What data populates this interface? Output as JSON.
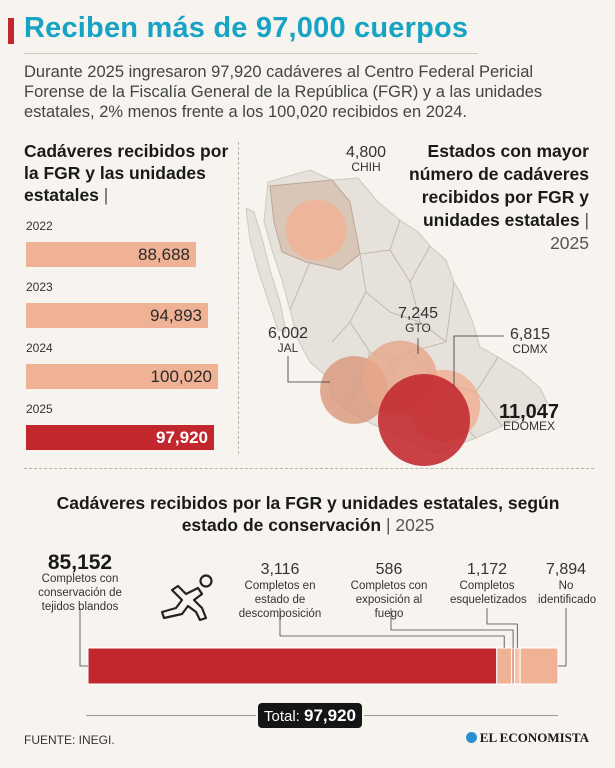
{
  "title": "Reciben más de 97,000 cuerpos",
  "intro": "Durante 2025 ingresaron 97,920 cadáveres al Centro Federal Pericial Forense de la Fiscalía General de la República (FGR) y a las unidades estatales, 2% menos frente a los 100,020 recibidos en 2024.",
  "left_chart_title": "Cadáveres recibidos por la FGR y las unidades estatales",
  "left_chart_title_sep": "|",
  "map_title": "Estados con mayor número de cadáveres recibidos por FGR y unidades estatales",
  "map_title_sep": "|",
  "map_year": "2025",
  "conservation_title": "Cadáveres recibidos por la FGR y unidades estatales, según estado de conservación",
  "conservation_title_sep": "|",
  "conservation_year": "2025",
  "total_label": "Total:",
  "total_value": "97,920",
  "source": "FUENTE:  INEGI.",
  "brand": "EL ECONOMISTA",
  "colors": {
    "accent": "#c3272e",
    "light": "#f0b295",
    "title": "#16a3c4",
    "map_land": "#e6e1da",
    "state": "#d9c6b6"
  },
  "icons": {
    "body": "chalk-body-outline-icon",
    "brand": "brand-dot-icon"
  },
  "chart_data": [
    {
      "type": "bar",
      "orientation": "horizontal",
      "title": "Cadáveres recibidos por la FGR y las unidades estatales",
      "categories": [
        "2022",
        "2023",
        "2024",
        "2025"
      ],
      "values": [
        88688,
        94893,
        100020,
        97920
      ],
      "labels": [
        "88,688",
        "94,893",
        "100,020",
        "97,920"
      ],
      "highlight": "2025"
    },
    {
      "type": "scatter",
      "subtype": "bubble-map",
      "title": "Estados con mayor número de cadáveres recibidos por FGR y unidades estatales",
      "points": [
        {
          "state": "CHIH",
          "value": 4800,
          "label": "4,800"
        },
        {
          "state": "JAL",
          "value": 6002,
          "label": "6,002"
        },
        {
          "state": "GTO",
          "value": 7245,
          "label": "7,245"
        },
        {
          "state": "CDMX",
          "value": 6815,
          "label": "6,815"
        },
        {
          "state": "EDOMEX",
          "value": 11047,
          "label": "11,047"
        }
      ]
    },
    {
      "type": "bar",
      "subtype": "stacked-100",
      "title": "Cadáveres recibidos por la FGR y unidades estatales, según estado de conservación",
      "categories": [
        "Completos con conservación de tejidos blandos",
        "Completos en estado de descomposición",
        "Completos con exposición al fuego",
        "Completos esqueletizados",
        "No identificado"
      ],
      "values": [
        85152,
        3116,
        586,
        1172,
        7894
      ],
      "labels": [
        "85,152",
        "3,116",
        "586",
        "1,172",
        "7,894"
      ],
      "total": 97920
    }
  ]
}
